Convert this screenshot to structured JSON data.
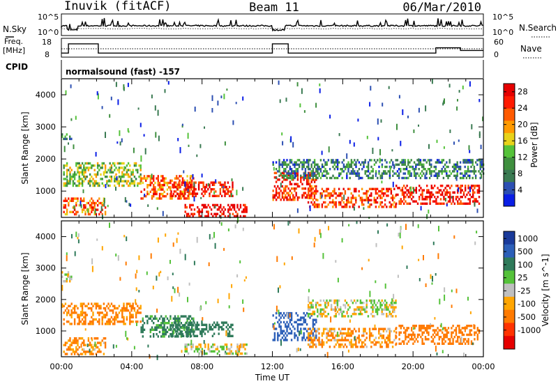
{
  "header": {
    "station": "Inuvik (fitACF)",
    "beam": "Beam 11",
    "date": "06/Mar/2010"
  },
  "noise_panel": {
    "left_label": "N.Sky",
    "left_ticks": [
      "10^5",
      "10^0"
    ],
    "right_label": "N.Search",
    "right_ticks": [
      "10^5",
      "10^0"
    ]
  },
  "freq_panel": {
    "left_label_line1": "Freq.",
    "left_label_line2": "[MHz]",
    "left_ticks": [
      "18",
      "8"
    ],
    "right_label": "Nave",
    "right_ticks": [
      "60",
      "0"
    ]
  },
  "cpid": {
    "label": "CPID",
    "program": "normalsound (fast) -157"
  },
  "colors": {
    "power": [
      "#0a1ee6",
      "#2c4fb2",
      "#3a7a52",
      "#3f8f3f",
      "#55c23a",
      "#e8d21a",
      "#ff9a00",
      "#ff5a00",
      "#ff1a00",
      "#e60000"
    ],
    "velocity": [
      "#1a3a9a",
      "#2c5fb8",
      "#2f7a5a",
      "#55c23a",
      "#bfbfbf",
      "#ffa500",
      "#ff7a00",
      "#ff3300",
      "#e60000"
    ]
  },
  "chart_data": [
    {
      "type": "heatmap",
      "title": "",
      "ylabel": "Slant Range [km]",
      "xlabel": "",
      "ylim": [
        180,
        4500
      ],
      "y_ticks": [
        1000,
        2000,
        3000,
        4000
      ],
      "colorbar": {
        "label": "Power [dB]",
        "ticks": [
          4,
          8,
          12,
          16,
          20,
          24,
          28
        ],
        "range": [
          0,
          30
        ]
      },
      "echo_regions": [
        {
          "x": [
            0.0,
            0.6
          ],
          "y": [
            2600,
            2800
          ],
          "value": 10
        },
        {
          "x": [
            0.1,
            4.5
          ],
          "y": [
            1200,
            1900
          ],
          "value": 14
        },
        {
          "x": [
            0.1,
            2.5
          ],
          "y": [
            300,
            800
          ],
          "value": 22
        },
        {
          "x": [
            4.5,
            7.5
          ],
          "y": [
            800,
            1500
          ],
          "value": 22
        },
        {
          "x": [
            6.2,
            9.7
          ],
          "y": [
            850,
            1300
          ],
          "value": 27
        },
        {
          "x": [
            7.0,
            10.5
          ],
          "y": [
            250,
            600
          ],
          "value": 28
        },
        {
          "x": [
            12.0,
            14.5
          ],
          "y": [
            700,
            1600
          ],
          "value": 26
        },
        {
          "x": [
            12.0,
            24.0
          ],
          "y": [
            1400,
            2000
          ],
          "value": 8
        },
        {
          "x": [
            14.0,
            19.0
          ],
          "y": [
            500,
            1100
          ],
          "value": 24
        },
        {
          "x": [
            19.0,
            23.8
          ],
          "y": [
            600,
            1200
          ],
          "value": 27
        }
      ]
    },
    {
      "type": "heatmap",
      "title": "",
      "ylabel": "Slant Range [km]",
      "xlabel": "Time UT",
      "ylim": [
        180,
        4500
      ],
      "y_ticks": [
        1000,
        2000,
        3000,
        4000
      ],
      "x_ticks": [
        "00:00",
        "04:00",
        "08:00",
        "12:00",
        "16:00",
        "20:00",
        "00:00"
      ],
      "colorbar": {
        "label": "Velocity [m s^-1]",
        "ticks": [
          1000,
          500,
          100,
          25,
          -25,
          -100,
          -500,
          -1000
        ]
      },
      "echo_regions": [
        {
          "x": [
            0.0,
            0.6
          ],
          "y": [
            2600,
            2900
          ],
          "value": 0
        },
        {
          "x": [
            0.1,
            4.5
          ],
          "y": [
            1200,
            1900
          ],
          "value": -150
        },
        {
          "x": [
            0.1,
            2.5
          ],
          "y": [
            300,
            800
          ],
          "value": -120
        },
        {
          "x": [
            4.5,
            7.5
          ],
          "y": [
            800,
            1500
          ],
          "value": 150
        },
        {
          "x": [
            6.2,
            9.7
          ],
          "y": [
            850,
            1300
          ],
          "value": 200
        },
        {
          "x": [
            7.0,
            10.5
          ],
          "y": [
            250,
            600
          ],
          "value": 0
        },
        {
          "x": [
            12.0,
            14.5
          ],
          "y": [
            700,
            1600
          ],
          "value": 600
        },
        {
          "x": [
            14.0,
            19.0
          ],
          "y": [
            1500,
            2000
          ],
          "value": 0
        },
        {
          "x": [
            14.0,
            19.0
          ],
          "y": [
            500,
            1100
          ],
          "value": -100
        },
        {
          "x": [
            19.0,
            23.8
          ],
          "y": [
            600,
            1200
          ],
          "value": -200
        }
      ]
    },
    {
      "type": "line",
      "ylabel": "Freq. [MHz]",
      "series": [
        {
          "name": "Freq.",
          "x": [
            0,
            0.4,
            0.4,
            2.1,
            2.1,
            12.0,
            12.0,
            12.9,
            12.9,
            21.3,
            21.3,
            22.7,
            22.7,
            24
          ],
          "values": [
            10,
            10,
            17,
            17,
            10,
            10,
            17,
            17,
            10,
            10,
            14,
            14,
            12,
            12
          ]
        }
      ]
    }
  ]
}
